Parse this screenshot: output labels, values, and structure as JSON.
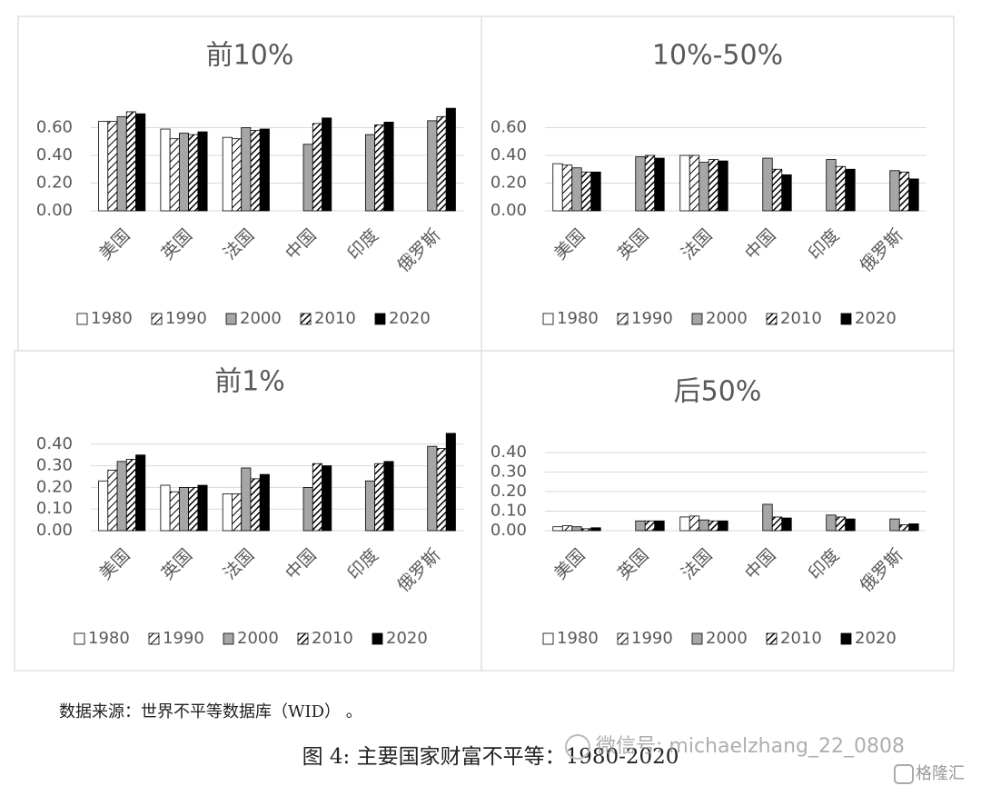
{
  "chart_data": [
    {
      "type": "bar",
      "title": "前10%",
      "categories": [
        "美国",
        "英国",
        "法国",
        "中国",
        "印度",
        "俄罗斯"
      ],
      "ylim": [
        0,
        0.8
      ],
      "yticks": [
        {
          "value": 0,
          "label": "0.00"
        },
        {
          "value": 0.2,
          "label": "0.20"
        },
        {
          "value": 0.4,
          "label": "0.40"
        },
        {
          "value": 0.6,
          "label": "0.60"
        }
      ],
      "grid": true,
      "series": [
        {
          "name": "1980",
          "color": "#ffffff",
          "values": [
            0.645,
            0.59,
            0.53,
            null,
            null,
            null
          ]
        },
        {
          "name": "1990",
          "color": "#ffffff",
          "hatch": "light",
          "values": [
            0.645,
            0.52,
            0.52,
            null,
            null,
            null
          ]
        },
        {
          "name": "2000",
          "color": "#a6a6a6",
          "values": [
            0.68,
            0.56,
            0.6,
            0.48,
            0.55,
            0.65
          ]
        },
        {
          "name": "2010",
          "color": "#ffffff",
          "hatch": "dense",
          "values": [
            0.715,
            0.55,
            0.58,
            0.63,
            0.62,
            0.68
          ]
        },
        {
          "name": "2020",
          "color": "#000000",
          "values": [
            0.7,
            0.57,
            0.59,
            0.67,
            0.64,
            0.74
          ]
        }
      ]
    },
    {
      "type": "bar",
      "title": "10%-50%",
      "categories": [
        "美国",
        "英国",
        "法国",
        "中国",
        "印度",
        "俄罗斯"
      ],
      "ylim": [
        0,
        0.8
      ],
      "yticks": [
        {
          "value": 0,
          "label": "0.00"
        },
        {
          "value": 0.2,
          "label": "0.20"
        },
        {
          "value": 0.4,
          "label": "0.40"
        },
        {
          "value": 0.6,
          "label": "0.60"
        }
      ],
      "grid": true,
      "series": [
        {
          "name": "1980",
          "color": "#ffffff",
          "values": [
            0.34,
            null,
            0.4,
            null,
            null,
            null
          ]
        },
        {
          "name": "1990",
          "color": "#ffffff",
          "hatch": "light",
          "values": [
            0.33,
            null,
            0.4,
            null,
            null,
            null
          ]
        },
        {
          "name": "2000",
          "color": "#a6a6a6",
          "values": [
            0.31,
            0.39,
            0.35,
            0.38,
            0.37,
            0.29
          ]
        },
        {
          "name": "2010",
          "color": "#ffffff",
          "hatch": "dense",
          "values": [
            0.28,
            0.4,
            0.37,
            0.3,
            0.32,
            0.28
          ]
        },
        {
          "name": "2020",
          "color": "#000000",
          "values": [
            0.28,
            0.38,
            0.36,
            0.26,
            0.3,
            0.23
          ]
        }
      ]
    },
    {
      "type": "bar",
      "title": "前1%",
      "categories": [
        "美国",
        "英国",
        "法国",
        "中国",
        "印度",
        "俄罗斯"
      ],
      "ylim": [
        0,
        0.5
      ],
      "yticks": [
        {
          "value": 0,
          "label": "0.00"
        },
        {
          "value": 0.1,
          "label": "0.10"
        },
        {
          "value": 0.2,
          "label": "0.20"
        },
        {
          "value": 0.3,
          "label": "0.30"
        },
        {
          "value": 0.4,
          "label": "0.40"
        }
      ],
      "grid": true,
      "series": [
        {
          "name": "1980",
          "color": "#ffffff",
          "values": [
            0.23,
            0.21,
            0.17,
            null,
            null,
            null
          ]
        },
        {
          "name": "1990",
          "color": "#ffffff",
          "hatch": "light",
          "values": [
            0.28,
            0.18,
            0.17,
            null,
            null,
            null
          ]
        },
        {
          "name": "2000",
          "color": "#a6a6a6",
          "values": [
            0.32,
            0.2,
            0.29,
            0.2,
            0.23,
            0.39
          ]
        },
        {
          "name": "2010",
          "color": "#ffffff",
          "hatch": "dense",
          "values": [
            0.33,
            0.2,
            0.24,
            0.31,
            0.31,
            0.38
          ]
        },
        {
          "name": "2020",
          "color": "#000000",
          "values": [
            0.35,
            0.21,
            0.26,
            0.3,
            0.32,
            0.45
          ]
        }
      ]
    },
    {
      "type": "bar",
      "title": "后50%",
      "categories": [
        "美国",
        "英国",
        "法国",
        "中国",
        "印度",
        "俄罗斯"
      ],
      "ylim": [
        0,
        0.5
      ],
      "yticks": [
        {
          "value": 0,
          "label": "0.00"
        },
        {
          "value": 0.1,
          "label": "0.10"
        },
        {
          "value": 0.2,
          "label": "0.20"
        },
        {
          "value": 0.3,
          "label": "0.30"
        },
        {
          "value": 0.4,
          "label": "0.40"
        }
      ],
      "grid": true,
      "series": [
        {
          "name": "1980",
          "color": "#ffffff",
          "values": [
            0.02,
            null,
            0.07,
            null,
            null,
            null
          ]
        },
        {
          "name": "1990",
          "color": "#ffffff",
          "hatch": "light",
          "values": [
            0.025,
            null,
            0.075,
            null,
            null,
            null
          ]
        },
        {
          "name": "2000",
          "color": "#a6a6a6",
          "values": [
            0.02,
            0.05,
            0.055,
            0.135,
            0.08,
            0.06
          ]
        },
        {
          "name": "2010",
          "color": "#ffffff",
          "hatch": "dense",
          "values": [
            0.01,
            0.05,
            0.05,
            0.07,
            0.07,
            0.03
          ]
        },
        {
          "name": "2020",
          "color": "#000000",
          "values": [
            0.015,
            0.05,
            0.05,
            0.065,
            0.06,
            0.035
          ]
        }
      ]
    }
  ],
  "source": "数据来源：世界不平等数据库（WID） 。",
  "figure_caption": "图 4: 主要国家财富不平等：1980-2020",
  "watermark": "微信号: michaelzhang_22_0808",
  "brand": "格隆汇"
}
